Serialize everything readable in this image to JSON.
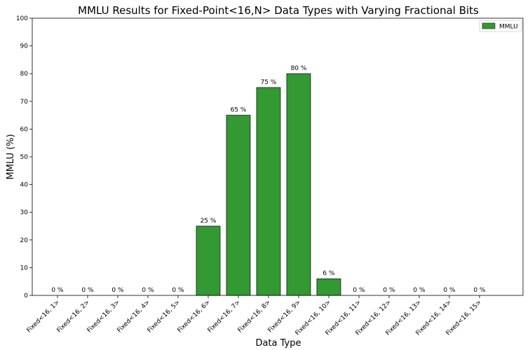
{
  "chart_data": {
    "type": "bar",
    "title": "MMLU Results for Fixed-Point<16,N> Data Types with Varying Fractional Bits",
    "xlabel": "Data Type",
    "ylabel": "MMLU (%)",
    "ylim": [
      0,
      100
    ],
    "yticks": [
      0,
      10,
      20,
      30,
      40,
      50,
      60,
      70,
      80,
      90,
      100
    ],
    "grid": false,
    "legend": {
      "position": "top-right",
      "entries": [
        "MMLU"
      ]
    },
    "bar_color": "#339933",
    "bar_edge_color": "#1a1a1a",
    "categories": [
      "Fixed<16, 1>",
      "Fixed<16, 2>",
      "Fixed<16, 3>",
      "Fixed<16, 4>",
      "Fixed<16, 5>",
      "Fixed<16, 6>",
      "Fixed<16, 7>",
      "Fixed<16, 8>",
      "Fixed<16, 9>",
      "Fixed<16, 10>",
      "Fixed<16, 11>",
      "Fixed<16, 12>",
      "Fixed<16, 13>",
      "Fixed<16, 14>",
      "Fixed<16, 15>"
    ],
    "series": [
      {
        "name": "MMLU",
        "values": [
          0,
          0,
          0,
          0,
          0,
          25,
          65,
          75,
          80,
          6,
          0,
          0,
          0,
          0,
          0
        ],
        "labels": [
          "0 %",
          "0 %",
          "0 %",
          "0 %",
          "0 %",
          "25 %",
          "65 %",
          "75 %",
          "80 %",
          "6 %",
          "0 %",
          "0 %",
          "0 %",
          "0 %",
          "0 %"
        ]
      }
    ]
  }
}
